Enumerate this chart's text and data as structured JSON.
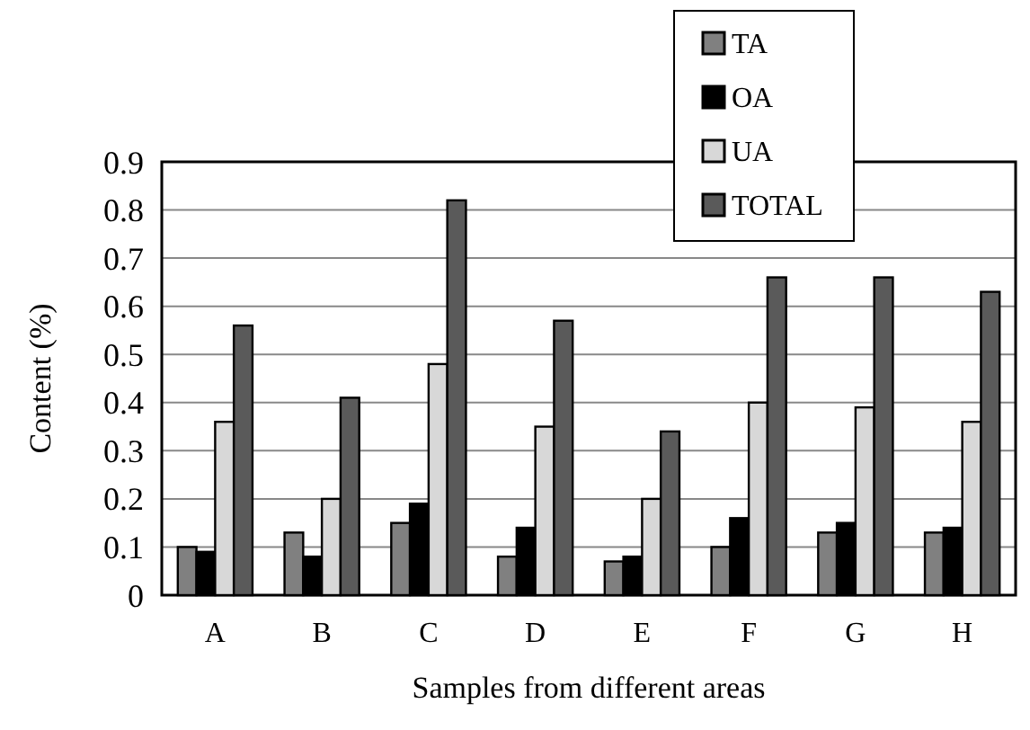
{
  "chart_data": {
    "type": "bar",
    "xlabel": "Samples from different areas",
    "ylabel": "Content (%)",
    "categories": [
      "A",
      "B",
      "C",
      "D",
      "E",
      "F",
      "G",
      "H"
    ],
    "series": [
      {
        "name": "TA",
        "color": "#808080",
        "values": [
          0.1,
          0.13,
          0.15,
          0.08,
          0.07,
          0.1,
          0.13,
          0.13
        ]
      },
      {
        "name": "OA",
        "color": "#000000",
        "values": [
          0.09,
          0.08,
          0.19,
          0.14,
          0.08,
          0.16,
          0.15,
          0.14
        ]
      },
      {
        "name": "UA",
        "color": "#d8d8d8",
        "values": [
          0.36,
          0.2,
          0.48,
          0.35,
          0.2,
          0.4,
          0.39,
          0.36
        ]
      },
      {
        "name": "TOTAL",
        "color": "#5a5a5a",
        "values": [
          0.56,
          0.41,
          0.82,
          0.57,
          0.34,
          0.66,
          0.66,
          0.63
        ]
      }
    ],
    "ylim": [
      0,
      0.9
    ],
    "yticks": [
      0,
      {
        "value": 0.1,
        "label": "0.1"
      },
      {
        "value": 0.2,
        "label": "0.2"
      },
      {
        "value": 0.3,
        "label": "0.3"
      },
      {
        "value": 0.4,
        "label": "0.4"
      },
      {
        "value": 0.5,
        "label": "0.5"
      },
      {
        "value": 0.6,
        "label": "0.6"
      },
      {
        "value": 0.7,
        "label": "0.7"
      },
      {
        "value": 0.8,
        "label": "0.8"
      },
      {
        "value": 0.9,
        "label": "0.9"
      }
    ],
    "grid": "y",
    "legend": "top"
  }
}
